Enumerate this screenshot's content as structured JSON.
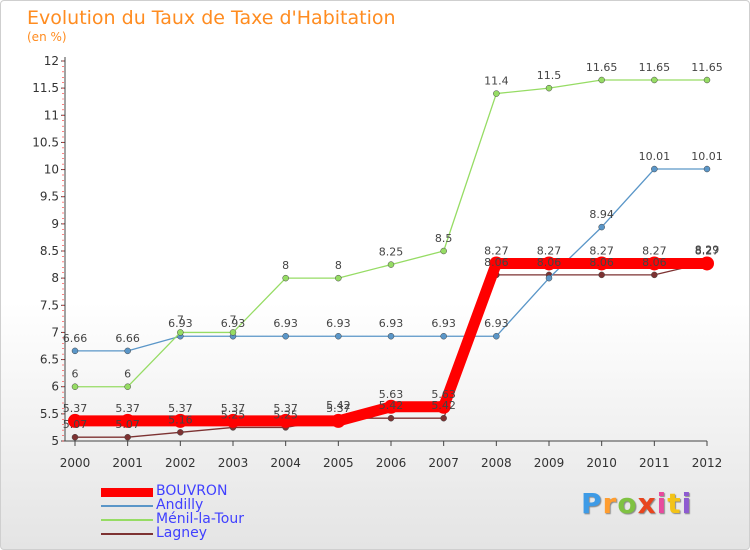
{
  "title": "Evolution du Taux de Taxe d'Habitation",
  "subtitle": "(en %)",
  "logo": {
    "letters": [
      "P",
      "r",
      "o",
      "x",
      "i",
      "t",
      "i"
    ],
    "colors": [
      "#3e9be6",
      "#ff9d2f",
      "#7fc242",
      "#e8451e",
      "#e84a9e",
      "#f3c317",
      "#8e5bd1"
    ]
  },
  "chart_data": {
    "type": "line",
    "x": [
      "2000",
      "2001",
      "2002",
      "2003",
      "2004",
      "2005",
      "2006",
      "2007",
      "2008",
      "2009",
      "2010",
      "2011",
      "2012"
    ],
    "ylim": [
      5,
      12
    ],
    "yticks": [
      "5",
      "5.5",
      "6",
      "6.5",
      "7",
      "7.5",
      "8",
      "8.5",
      "9",
      "9.5",
      "10",
      "10.5",
      "11",
      "11.5",
      "12"
    ],
    "grid": false,
    "legend_placement": "bottom-left",
    "series": [
      {
        "name": "BOUVRON",
        "color": "#ff0000",
        "values": [
          5.37,
          5.37,
          5.37,
          5.37,
          5.37,
          5.37,
          5.63,
          5.63,
          8.27,
          8.27,
          8.27,
          8.27,
          8.27
        ],
        "labels": [
          "5.37",
          "5.37",
          "5.37",
          "5.37",
          "5.37",
          "5.37",
          "5.63",
          "5.63",
          "8.27",
          "8.27",
          "8.27",
          "8.27",
          "8.27"
        ]
      },
      {
        "name": "Andilly",
        "color": "#5a96c8",
        "values": [
          6.66,
          6.66,
          6.93,
          6.93,
          6.93,
          6.93,
          6.93,
          6.93,
          6.93,
          8.0,
          8.94,
          10.01,
          10.01
        ],
        "labels": [
          "6.66",
          "6.66",
          "6.93",
          "6.93",
          "6.93",
          "6.93",
          "6.93",
          "6.93",
          "6.93",
          "",
          "8.94",
          "10.01",
          "10.01"
        ]
      },
      {
        "name": "Ménil-la-Tour",
        "color": "#96dc64",
        "values": [
          6,
          6,
          7,
          7,
          8,
          8,
          8.25,
          8.5,
          11.4,
          11.5,
          11.65,
          11.65,
          11.65
        ],
        "labels": [
          "6",
          "6",
          "7",
          "7",
          "8",
          "8",
          "8.25",
          "8.5",
          "11.4",
          "11.5",
          "11.65",
          "11.65",
          "11.65"
        ]
      },
      {
        "name": "Lagney",
        "color": "#7d3232",
        "values": [
          5.07,
          5.07,
          5.16,
          5.25,
          5.25,
          5.42,
          5.42,
          5.42,
          8.06,
          8.06,
          8.06,
          8.06,
          8.29
        ],
        "labels": [
          "5.07",
          "5.07",
          "5.16",
          "5.25",
          "5.25",
          "5.42",
          "5.42",
          "5.42",
          "8.06",
          "8.06",
          "8.06",
          "8.06",
          "8.29"
        ]
      }
    ]
  }
}
